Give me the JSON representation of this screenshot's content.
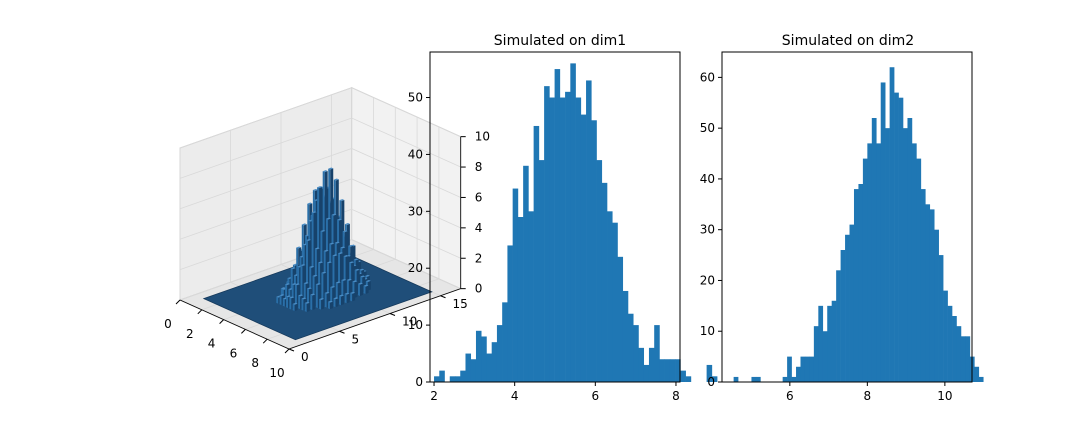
{
  "colors": {
    "bar": "#1f77b4",
    "surface": "#1f4e79",
    "axis": "#000000",
    "pane": "#f2f2f2",
    "grid": "#d9d9d9"
  },
  "chart_data": [
    {
      "type": "bar3d",
      "title": "",
      "x_ticks": [
        "0",
        "2",
        "4",
        "6",
        "8",
        "10"
      ],
      "y_ticks": [
        "0",
        "5",
        "10",
        "15"
      ],
      "z_ticks": [
        "0",
        "2",
        "4",
        "6",
        "8",
        "10"
      ],
      "xlim": [
        0,
        10
      ],
      "ylim": [
        0,
        17
      ],
      "zlim": [
        0,
        10
      ],
      "peak_value": 9
    },
    {
      "type": "bar",
      "title": "Simulated on dim1",
      "xlabel": "",
      "ylabel": "",
      "xlim": [
        1.9,
        8.1
      ],
      "ylim": [
        0,
        58
      ],
      "x_ticks": [
        2,
        4,
        6,
        8
      ],
      "y_ticks": [
        0,
        10,
        20,
        30,
        40,
        50
      ],
      "bin_start": 2.0,
      "bin_width": 0.13,
      "values": [
        1,
        2,
        0,
        1,
        1,
        2,
        5,
        4,
        9,
        8,
        5,
        7,
        10,
        14,
        24,
        34,
        29,
        38,
        30,
        45,
        39,
        52,
        50,
        55,
        50,
        51,
        56,
        50,
        47,
        53,
        46,
        39,
        35,
        30,
        28,
        22,
        16,
        12,
        10,
        6,
        3,
        6,
        10,
        4,
        4,
        4,
        4,
        2,
        1,
        0,
        0,
        0,
        3,
        1
      ]
    },
    {
      "type": "bar",
      "title": "Simulated on dim2",
      "xlabel": "",
      "ylabel": "",
      "xlim": [
        4.25,
        10.7
      ],
      "ylim": [
        0,
        65
      ],
      "x_ticks": [
        6,
        8,
        10
      ],
      "y_ticks": [
        0,
        10,
        20,
        30,
        40,
        50,
        60
      ],
      "bin_start": 4.55,
      "bin_width": 0.115,
      "values": [
        1,
        0,
        0,
        0,
        1,
        1,
        0,
        0,
        0,
        0,
        0,
        1,
        5,
        1,
        3,
        5,
        5,
        5,
        11,
        15,
        10,
        15,
        16,
        22,
        26,
        29,
        31,
        38,
        39,
        44,
        47,
        52,
        47,
        59,
        50,
        62,
        57,
        56,
        50,
        52,
        47,
        44,
        38,
        35,
        34,
        30,
        25,
        18,
        15,
        13,
        11,
        9,
        9,
        5,
        3,
        1
      ]
    }
  ]
}
